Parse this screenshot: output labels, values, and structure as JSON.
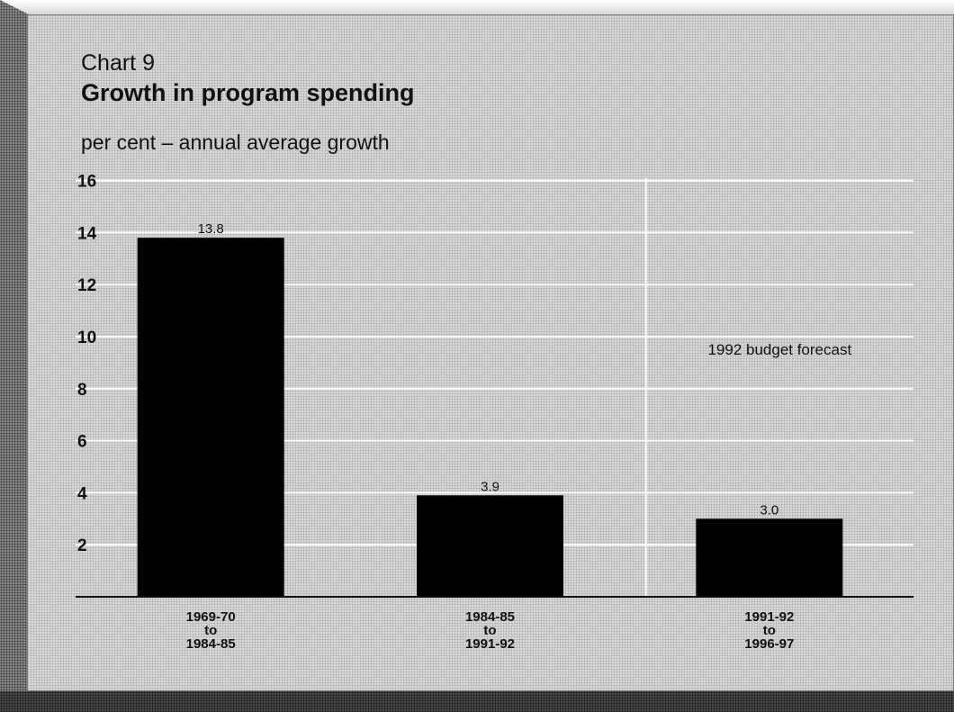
{
  "header": {
    "chart_number": "Chart 9",
    "title": "Growth in program spending"
  },
  "chart_data": {
    "type": "bar",
    "title": "Growth in program spending",
    "ylabel": "per cent – annual average growth",
    "xlabel": "",
    "categories": [
      [
        "1969-70",
        "to",
        "1984-85"
      ],
      [
        "1984-85",
        "to",
        "1991-92"
      ],
      [
        "1991-92",
        "to",
        "1996-97"
      ]
    ],
    "values": [
      13.8,
      3.9,
      3.0
    ],
    "data_labels": [
      "13.8",
      "3.9",
      "3.0"
    ],
    "ylim": [
      0,
      16
    ],
    "yticks": [
      2,
      4,
      6,
      8,
      10,
      12,
      14,
      16
    ],
    "grid": true,
    "forecast_region": {
      "label": "1992 budget forecast",
      "applies_to_category_index": 2
    },
    "colors": {
      "bar": "#000000",
      "grid": "#ffffff",
      "panel": "#d6d6d6"
    }
  }
}
